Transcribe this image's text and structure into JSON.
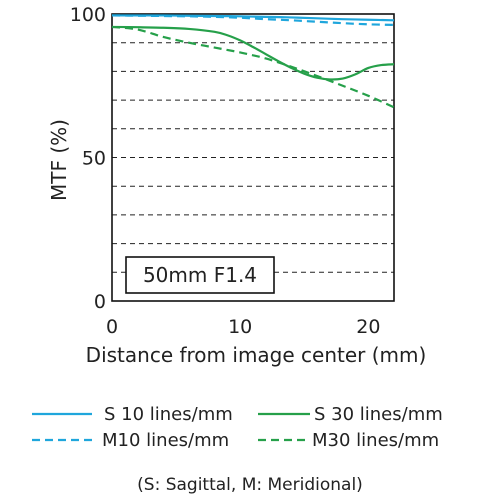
{
  "chart_data": {
    "type": "line",
    "xlabel": "Distance from image center (mm)",
    "ylabel": "MTF (%)",
    "xlim": [
      0,
      22
    ],
    "ylim": [
      0,
      100
    ],
    "x_ticks": [
      0,
      10,
      20
    ],
    "y_ticks": [
      0,
      50,
      100
    ],
    "grid": "horizontal dashed lines every 10%",
    "lens_label": "50mm F1.4",
    "note": "(S: Sagittal, M: Meridional)",
    "legend_position": "bottom",
    "series": [
      {
        "name": "S 10 lines/mm",
        "color": "#1fa6dc",
        "style": "solid",
        "x": [
          0,
          2,
          4,
          6,
          8,
          10,
          12,
          14,
          16,
          18,
          20,
          22
        ],
        "y": [
          99.5,
          99.5,
          99.5,
          99.4,
          99.3,
          99.2,
          99.0,
          98.8,
          98.5,
          98.2,
          98.0,
          97.8
        ]
      },
      {
        "name": "M10 lines/mm",
        "color": "#1fa6dc",
        "style": "dashed",
        "x": [
          0,
          2,
          4,
          6,
          8,
          10,
          12,
          14,
          16,
          18,
          20,
          22
        ],
        "y": [
          99.5,
          99.4,
          99.3,
          99.2,
          99.0,
          98.7,
          98.2,
          97.8,
          97.3,
          96.8,
          96.4,
          96.2
        ]
      },
      {
        "name": "S 30 lines/mm",
        "color": "#26a04a",
        "style": "solid",
        "x": [
          0,
          2,
          4,
          6,
          8,
          9,
          10,
          11,
          12,
          13,
          14,
          15,
          16,
          17,
          18,
          19,
          20,
          21,
          22
        ],
        "y": [
          95.5,
          95.4,
          95.2,
          94.8,
          93.8,
          92.6,
          90.8,
          88.5,
          86.0,
          83.5,
          81.2,
          79.2,
          77.8,
          77.2,
          77.5,
          79.0,
          81.2,
          82.2,
          82.5
        ]
      },
      {
        "name": "M30 lines/mm",
        "color": "#26a04a",
        "style": "dashed",
        "x": [
          0,
          2,
          4,
          6,
          8,
          10,
          12,
          14,
          16,
          18,
          20,
          22
        ],
        "y": [
          95.5,
          94.6,
          92.0,
          90.0,
          88.3,
          86.6,
          84.5,
          81.6,
          78.4,
          75.0,
          71.5,
          67.5
        ]
      }
    ]
  }
}
